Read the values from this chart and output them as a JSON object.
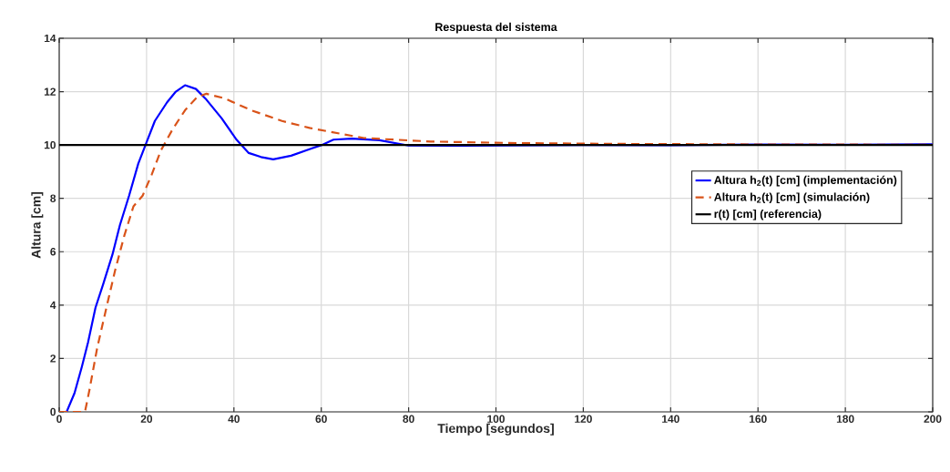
{
  "chart_data": {
    "type": "line",
    "title": "Respuesta del sistema",
    "xlabel": "Tiempo [segundos]",
    "ylabel": "Altura [cm]",
    "xlim": [
      0,
      200
    ],
    "ylim": [
      0,
      14
    ],
    "xticks": [
      0,
      20,
      40,
      60,
      80,
      100,
      120,
      140,
      160,
      180,
      200
    ],
    "yticks": [
      0,
      2,
      4,
      6,
      8,
      10,
      12,
      14
    ],
    "grid": true,
    "legend": "right",
    "series": [
      {
        "name": "Altura h$_{2}$(t) [cm] (implementación)",
        "color": "#0000ff",
        "line_style": "solid",
        "x": [
          0,
          1.7,
          3.5,
          5.2,
          6.6,
          8.3,
          10.1,
          12.2,
          13.9,
          16,
          18.1,
          20,
          21.9,
          24.7,
          26.7,
          28.8,
          31.3,
          33.7,
          37.2,
          40.6,
          43.4,
          46.2,
          49,
          53.1,
          57.3,
          60.1,
          62.8,
          67,
          73.3,
          80,
          90,
          100,
          120,
          140,
          160,
          180,
          200
        ],
        "values": [
          0,
          0,
          0.7,
          1.7,
          2.6,
          3.9,
          4.8,
          5.9,
          7,
          8.1,
          9.3,
          10.1,
          10.9,
          11.6,
          12,
          12.24,
          12.1,
          11.7,
          11,
          10.2,
          9.7,
          9.55,
          9.46,
          9.6,
          9.84,
          10,
          10.2,
          10.24,
          10.18,
          9.98,
          9.97,
          9.98,
          10,
          9.99,
          10.02,
          10.01,
          10.03
        ]
      },
      {
        "name": "Altura h$_{2}$(t) [cm] (simulación)",
        "color": "#d95319",
        "line_style": "dashed",
        "x": [
          0,
          5.9,
          6.9,
          8.7,
          10.8,
          12.8,
          14.9,
          17,
          19.1,
          21.2,
          23.3,
          26,
          28.8,
          31.6,
          33.7,
          37.8,
          44,
          51,
          57.3,
          69.8,
          85,
          105,
          130,
          160,
          200
        ],
        "values": [
          0,
          0,
          0.8,
          2.4,
          3.9,
          5.3,
          6.6,
          7.7,
          8.1,
          8.9,
          9.8,
          10.6,
          11.3,
          11.8,
          11.92,
          11.75,
          11.3,
          10.9,
          10.64,
          10.26,
          10.13,
          10.07,
          10.04,
          10.02,
          10.01
        ]
      },
      {
        "name": "r(t) [cm] (referencia)",
        "color": "#000000",
        "line_style": "solid",
        "x": [
          0,
          200
        ],
        "values": [
          10,
          10
        ]
      }
    ]
  }
}
